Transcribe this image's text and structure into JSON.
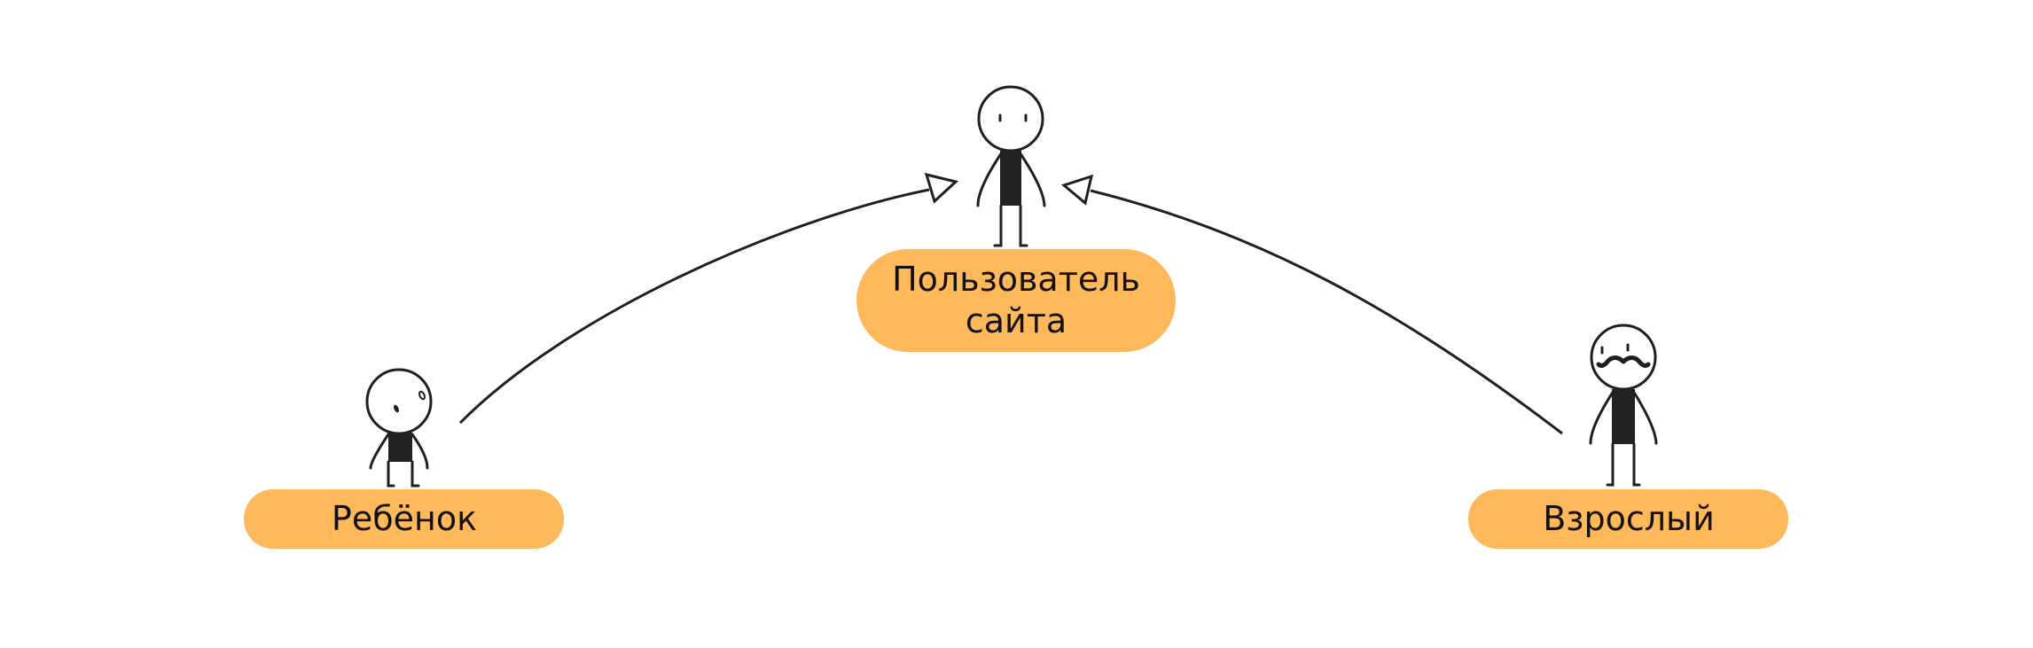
{
  "colors": {
    "pill_fill": "#ffb95b",
    "line": "#1f1f1f",
    "figure_body": "#222222"
  },
  "nodes": {
    "parent": {
      "label_line1": "Пользователь",
      "label_line2": "сайта"
    },
    "child": {
      "label": "Ребёнок"
    },
    "adult": {
      "label": "Взрослый"
    }
  },
  "relations": [
    {
      "from": "Ребёнок",
      "to": "Пользователь сайта",
      "type": "generalization"
    },
    {
      "from": "Взрослый",
      "to": "Пользователь сайта",
      "type": "generalization"
    }
  ]
}
